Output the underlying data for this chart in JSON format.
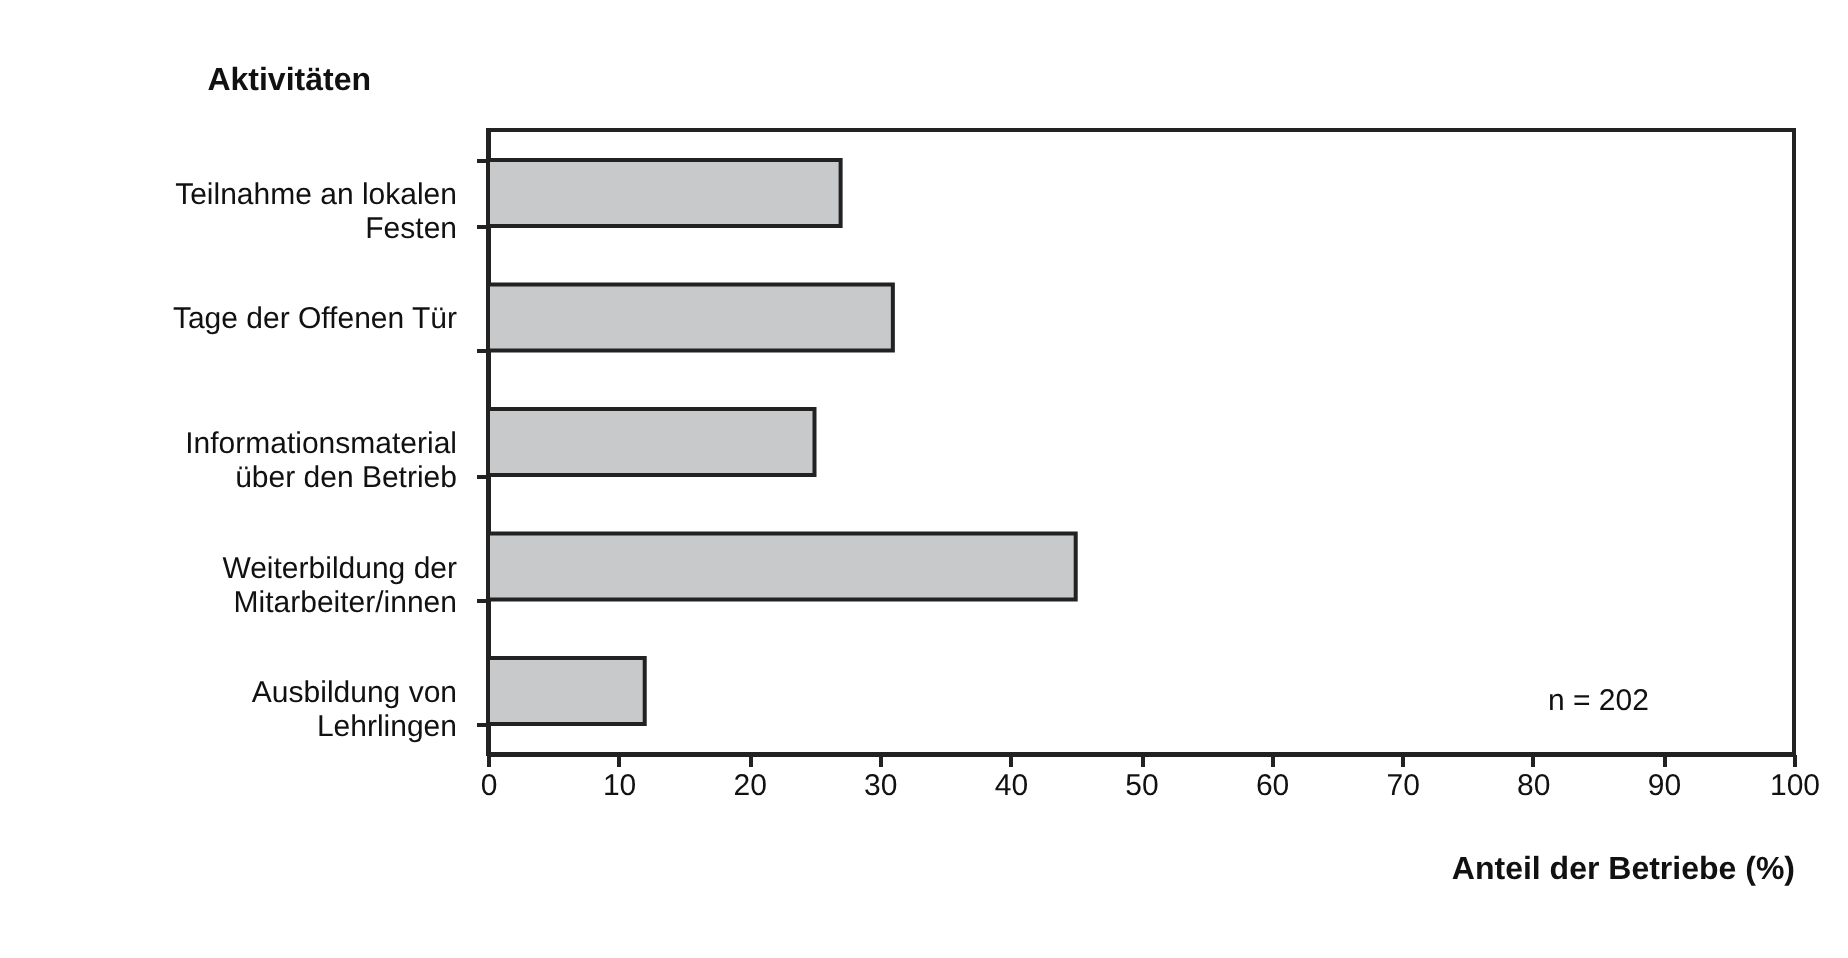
{
  "chart_data": {
    "type": "bar",
    "orientation": "horizontal",
    "title": "Aktivitäten",
    "xlabel": "Anteil der Betriebe (%)",
    "categories": [
      "Teilnahme an lokalen\nFesten",
      "Tage der Offenen Tür",
      "Informationsmaterial\nüber den Betrieb",
      "Weiterbildung der\nMitarbeiter/innen",
      "Ausbildung von\nLehrlingen"
    ],
    "values": [
      27,
      31,
      25,
      45,
      12
    ],
    "color": "#c8c9cb",
    "xlim": [
      0,
      100
    ],
    "xticks": [
      0,
      10,
      20,
      30,
      40,
      50,
      60,
      70,
      80,
      90,
      100
    ],
    "grid": false,
    "annotations": [
      "n = 202"
    ]
  }
}
